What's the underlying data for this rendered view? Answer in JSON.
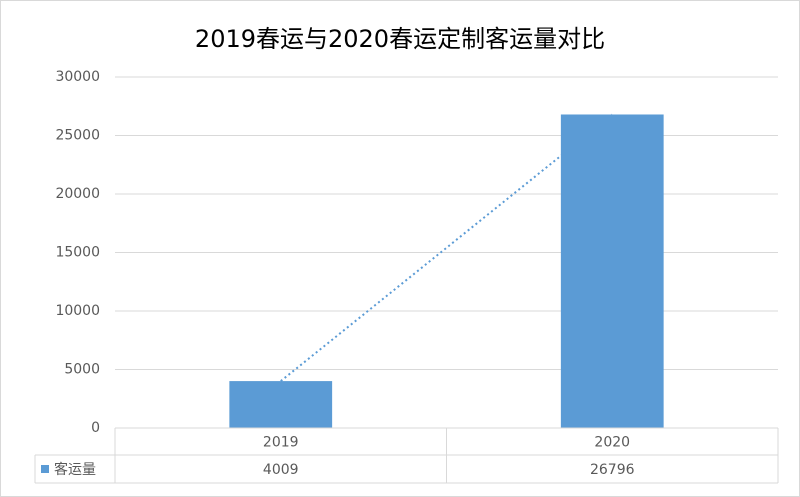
{
  "chart_data": {
    "type": "bar",
    "title": "2019春运与2020春运定制客运量对比",
    "categories": [
      "2019",
      "2020"
    ],
    "series": [
      {
        "name": "客运量",
        "color": "#5b9bd5",
        "values": [
          4009,
          26796
        ]
      }
    ],
    "ylim": [
      0,
      30000
    ],
    "yticks": [
      0,
      5000,
      10000,
      15000,
      20000,
      25000,
      30000
    ],
    "grid": true,
    "trendline": "linear",
    "data_table": true
  }
}
